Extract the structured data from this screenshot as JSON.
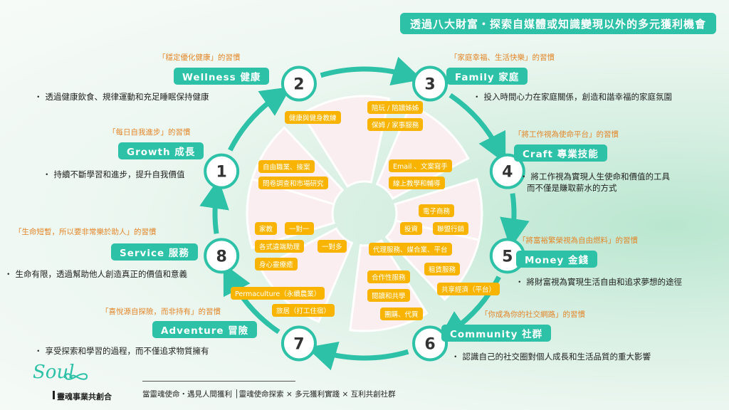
{
  "banner": "透過八大財富・探索自媒體或知識變現以外的多元獲利機會",
  "sections": [
    {
      "num": "1",
      "habit": "「每日自我進步」的習慣",
      "label": "Growth 成長",
      "desc": [
        "持續不斷學習和進步，提升自我價值"
      ]
    },
    {
      "num": "2",
      "habit": "「穩定優化健康」的習慣",
      "label": "Wellness 健康",
      "desc": [
        "透過健康飲食、規律運動和充足睡眠保持健康"
      ]
    },
    {
      "num": "3",
      "habit": "「家庭幸福、生活快樂」的習慣",
      "label": "Family 家庭",
      "desc": [
        "投入時間心力在家庭關係，創造和諧幸福的家庭氛圍"
      ]
    },
    {
      "num": "4",
      "habit": "「將工作視為使命平台」的習慣",
      "label": "Craft 專業技能",
      "desc": [
        "將工作視為實現人生使命和價值的工具",
        "而不僅是賺取薪水的方式"
      ]
    },
    {
      "num": "5",
      "habit": "「將富裕繁榮視為自由燃料」的習慣",
      "label": "Money 金錢",
      "desc": [
        "將財富視為實現生活自由和追求夢想的途徑"
      ]
    },
    {
      "num": "6",
      "habit": "「你成為你的社交網路」的習慣",
      "label": "Community 社群",
      "desc": [
        "認識自己的社交圈對個人成長和生活品質的重大影響"
      ]
    },
    {
      "num": "7",
      "habit": "「喜悅源自探險，而非持有」的習慣",
      "label": "Adventure 冒險",
      "desc": [
        "享受探索和學習的過程，而不僅追求物質擁有"
      ]
    },
    {
      "num": "8",
      "habit": "「生命短暫，所以要非常樂於助人」的習慣",
      "label": "Service 服務",
      "desc": [
        "生命有限，透過幫助他人創造真正的價值和意義"
      ]
    }
  ],
  "chips": {
    "wellness": [
      "健康與健身教練"
    ],
    "family": [
      "陪玩 / 陪讀姊姊",
      "保姆 / 家事服務"
    ],
    "craft": [
      "Email 、文案寫手",
      "線上教學和輔導"
    ],
    "growth": [
      "自由職業、接案",
      "問卷調查和市場研究"
    ],
    "money": [
      "電子商務",
      "投資",
      "聯盟行銷",
      "代理服務、媒合業、平台",
      "租賃服務",
      "共享經濟（平台）"
    ],
    "service": [
      "家教",
      "一對一",
      "各式違端助理",
      "一對多",
      "身心靈療癒"
    ],
    "community": [
      "合作性服務",
      "閱讀和共學",
      "團購、代買"
    ],
    "adventure": [
      "Permaculture（永續農業）",
      "旅居（打工住宿）"
    ]
  },
  "footer": {
    "logo_script": "Soul",
    "brand": "靈魂事業共創合",
    "tagline": "當靈魂使命・遇見人間獲利 │靈魂使命探索 × 多元獲利實踐 × 互利共創社群"
  },
  "colors": {
    "teal": "#2dc1a7",
    "orange": "#e2862a",
    "chip": "#f8b400",
    "petal": "#fbeef0"
  }
}
